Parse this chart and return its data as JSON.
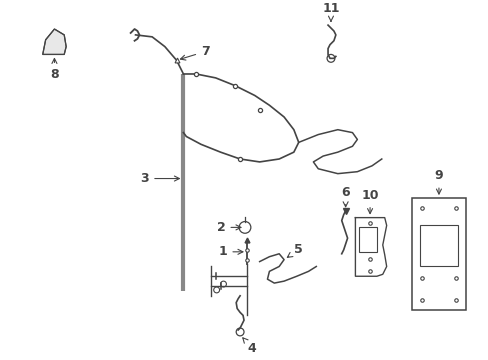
{
  "background_color": "#ffffff",
  "line_color": "#444444",
  "label_color": "#000000",
  "lw": 1.1,
  "fig_w": 4.89,
  "fig_h": 3.6,
  "dpi": 100
}
